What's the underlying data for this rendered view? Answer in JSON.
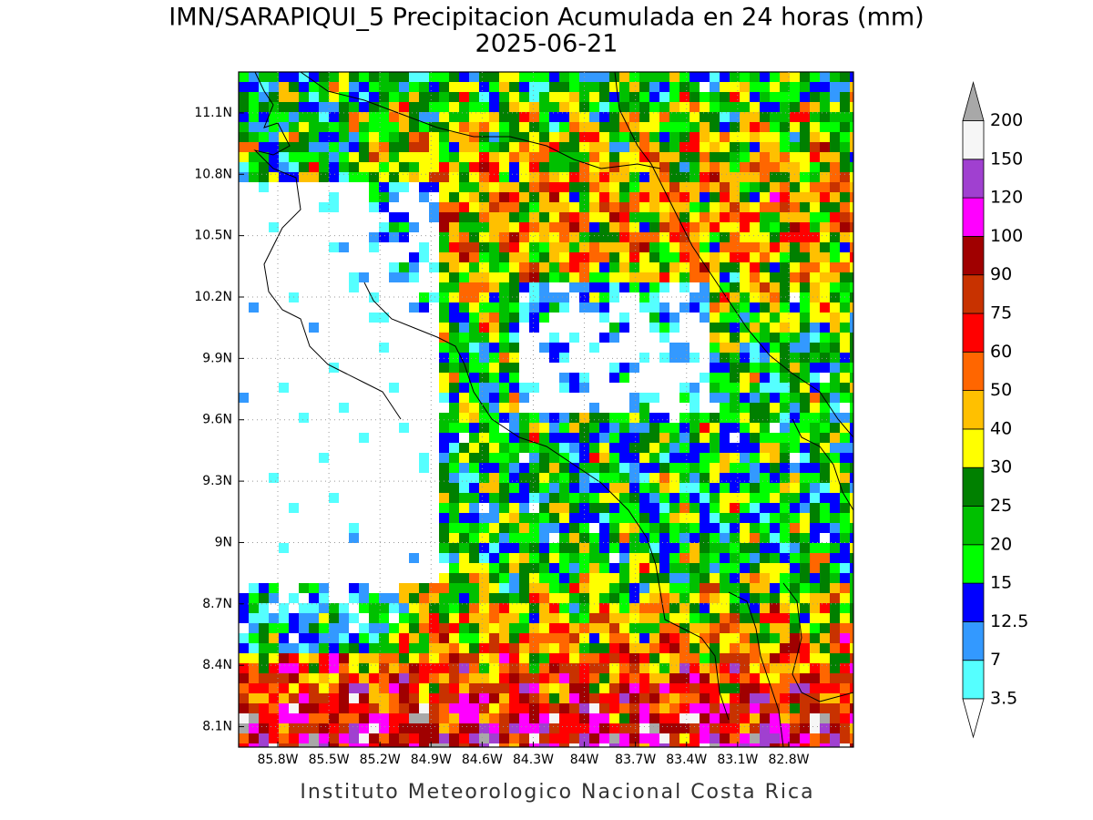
{
  "title": "IMN/SARAPIQUI_5 Precipitacion Acumulada en 24 horas (mm)",
  "subtitle": "2025-06-21",
  "footer": "Instituto Meteorologico Nacional Costa Rica",
  "axes": {
    "xlim": [
      -86.03,
      -82.42
    ],
    "ylim": [
      8.0,
      11.3
    ],
    "xticks": [
      {
        "value": -85.8,
        "label": "85.8W"
      },
      {
        "value": -85.5,
        "label": "85.5W"
      },
      {
        "value": -85.2,
        "label": "85.2W"
      },
      {
        "value": -84.9,
        "label": "84.9W"
      },
      {
        "value": -84.6,
        "label": "84.6W"
      },
      {
        "value": -84.3,
        "label": "84.3W"
      },
      {
        "value": -84,
        "label": "84W"
      },
      {
        "value": -83.7,
        "label": "83.7W"
      },
      {
        "value": -83.4,
        "label": "83.4W"
      },
      {
        "value": -83.1,
        "label": "83.1W"
      },
      {
        "value": -82.8,
        "label": "82.8W"
      }
    ],
    "yticks": [
      {
        "value": 11.1,
        "label": "11.1N"
      },
      {
        "value": 10.8,
        "label": "10.8N"
      },
      {
        "value": 10.5,
        "label": "10.5N"
      },
      {
        "value": 10.2,
        "label": "10.2N"
      },
      {
        "value": 9.9,
        "label": "9.9N"
      },
      {
        "value": 9.6,
        "label": "9.6N"
      },
      {
        "value": 9.3,
        "label": "9.3N"
      },
      {
        "value": 9,
        "label": "9N"
      },
      {
        "value": 8.7,
        "label": "8.7N"
      },
      {
        "value": 8.4,
        "label": "8.4N"
      },
      {
        "value": 8.1,
        "label": "8.1N"
      }
    ],
    "grid": true
  },
  "colorbar": {
    "levels": [
      3.5,
      7,
      12.5,
      15,
      20,
      25,
      30,
      40,
      50,
      60,
      75,
      90,
      100,
      120,
      150,
      200
    ],
    "colors": [
      "#55ffff",
      "#3399ff",
      "#0000ff",
      "#00ff00",
      "#00c000",
      "#008000",
      "#ffff00",
      "#ffc000",
      "#ff6600",
      "#ff0000",
      "#c83200",
      "#a00000",
      "#ff00ff",
      "#a040d0",
      "#f6f6f6"
    ],
    "under_color": "#ffffff",
    "over_color": "#a8a8a8"
  }
}
